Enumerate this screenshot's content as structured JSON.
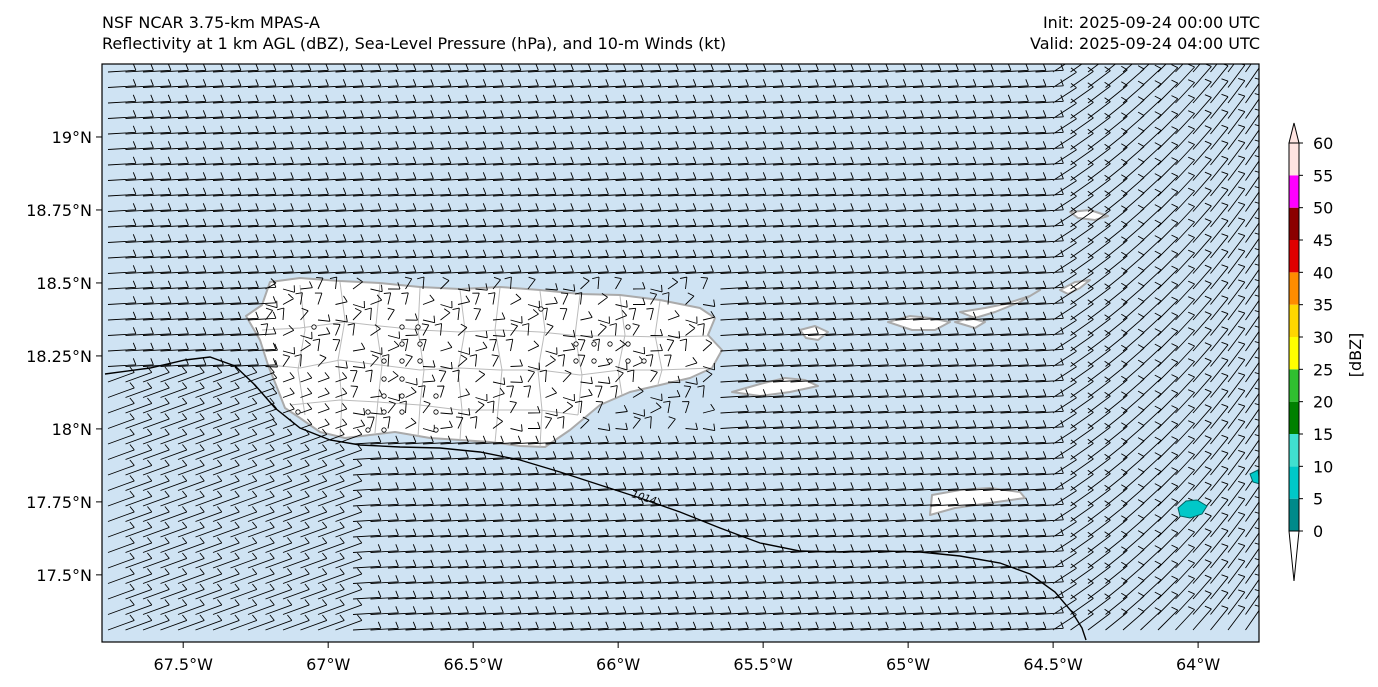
{
  "header": {
    "title_line1": "NSF NCAR 3.75-km MPAS-A",
    "title_line2": "Reflectivity at 1 km AGL (dBZ), Sea-Level Pressure (hPa), and 10-m Winds (kt)",
    "init": "Init: 2025-09-24 00:00 UTC",
    "valid": "Valid: 2025-09-24 04:00 UTC"
  },
  "map": {
    "lon_ticks": [
      "67.5°W",
      "67°W",
      "66.5°W",
      "66°W",
      "65.5°W",
      "65°W",
      "64.5°W",
      "64°W"
    ],
    "lat_ticks": [
      "19°N",
      "18.75°N",
      "18.5°N",
      "18.25°N",
      "18°N",
      "17.75°N",
      "17.5°N"
    ],
    "lon_range": [
      -67.78,
      -63.79
    ],
    "lat_range": [
      17.27,
      19.25
    ],
    "isobar_label": "1014",
    "coastline_color": "#aaaaaa",
    "ocean_color": "#cfe3f3"
  },
  "colorbar": {
    "label": "[dBZ]",
    "ticks": [
      "0",
      "5",
      "10",
      "15",
      "20",
      "25",
      "30",
      "35",
      "40",
      "45",
      "50",
      "55",
      "60"
    ],
    "colors": [
      "#008a8a",
      "#00c8c8",
      "#40e0d0",
      "#008000",
      "#30c030",
      "#ffff00",
      "#ffd700",
      "#ff8c00",
      "#e00000",
      "#8b0000",
      "#ff00ff",
      "#ffe4e1"
    ],
    "extend": "both"
  }
}
